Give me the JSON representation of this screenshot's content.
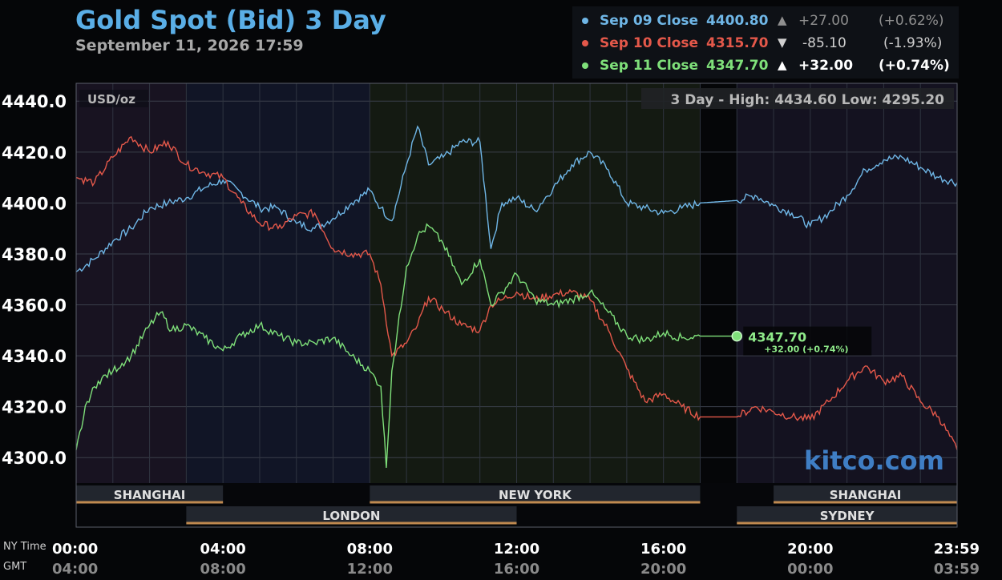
{
  "title": "Gold Spot (Bid) 3 Day",
  "subtitle": "September 11, 2026 17:59",
  "legend": [
    {
      "label": "Sep 09 Close",
      "value": "4400.80",
      "arrow": "▲",
      "change": "+27.00",
      "pct": "(+0.62%)",
      "color": "#6fb6e6",
      "dim": true
    },
    {
      "label": "Sep 10 Close",
      "value": "4315.70",
      "arrow": "▼",
      "change": "-85.10",
      "pct": "(-1.93%)",
      "color": "#e4584a",
      "dim": true
    },
    {
      "label": "Sep 11 Close",
      "value": "4347.70",
      "arrow": "▲",
      "change": "+32.00",
      "pct": "(+0.74%)",
      "color": "#7fe07a",
      "dim": false
    }
  ],
  "unit_label": "USD/oz",
  "range_label": "3 Day - High: 4434.60  Low: 4295.20",
  "watermark": "kitco.com",
  "current": {
    "value": "4347.70",
    "change": "+32.00 (+0.74%)"
  },
  "time_labels": {
    "ny": "NY Time",
    "gmt": "GMT"
  },
  "sessions": [
    {
      "name": "SHANGHAI",
      "start": 0,
      "end": 4,
      "row": 0
    },
    {
      "name": "NEW YORK",
      "start": 8,
      "end": 17,
      "row": 0
    },
    {
      "name": "SHANGHAI",
      "start": 19,
      "end": 24,
      "row": 0
    },
    {
      "name": "LONDON",
      "start": 3,
      "end": 12,
      "row": 1
    },
    {
      "name": "SYDNEY",
      "start": 18,
      "end": 24,
      "row": 1
    }
  ],
  "colors": {
    "sep09": "#6fb6e6",
    "sep10": "#e4584a",
    "sep11": "#7fe07a",
    "session_bar": "#c08a50"
  },
  "chart_data": {
    "type": "line",
    "ylabel": "USD/oz",
    "ylim": [
      4290,
      4447
    ],
    "xlim": [
      0,
      24
    ],
    "yticks": [
      4300.0,
      4320.0,
      4340.0,
      4360.0,
      4380.0,
      4400.0,
      4420.0,
      4440.0
    ],
    "ytick_labels": [
      "4300.0",
      "4320.0",
      "4340.0",
      "4360.0",
      "4380.0",
      "4400.0",
      "4420.0",
      "4440.0"
    ],
    "xticks": [
      0,
      4,
      8,
      12,
      16,
      20,
      24
    ],
    "xtick_labels_ny": [
      "00:00",
      "04:00",
      "08:00",
      "12:00",
      "16:00",
      "20:00",
      "23:59"
    ],
    "xtick_labels_gmt": [
      "04:00",
      "08:00",
      "12:00",
      "16:00",
      "20:00",
      "00:00",
      "03:59"
    ],
    "grid": true,
    "series": [
      {
        "name": "Sep 09 Close",
        "x": [
          0,
          0.5,
          1,
          1.5,
          2,
          2.5,
          3,
          3.5,
          4,
          4.5,
          5,
          5.5,
          6,
          6.5,
          7,
          7.5,
          8,
          8.3,
          8.6,
          9,
          9.3,
          9.6,
          10,
          10.5,
          11,
          11.3,
          11.6,
          12,
          12.5,
          13,
          13.5,
          14,
          14.5,
          15,
          15.5,
          16,
          16.5,
          17,
          18,
          18.5,
          19,
          19.5,
          20,
          20.5,
          21,
          21.5,
          22,
          22.5,
          23,
          23.5,
          24
        ],
        "y": [
          4373,
          4378,
          4385,
          4390,
          4398,
          4400,
          4402,
          4406,
          4409,
          4404,
          4398,
          4398,
          4392,
          4390,
          4394,
          4400,
          4405,
          4398,
          4393,
          4415,
          4430,
          4415,
          4418,
          4424,
          4424,
          4382,
          4400,
          4402,
          4397,
          4406,
          4415,
          4420,
          4413,
          4400,
          4398,
          4396,
          4398,
          4400,
          4401,
          4403,
          4399,
          4396,
          4391,
          4396,
          4403,
          4413,
          4417,
          4418,
          4414,
          4410,
          4408
        ]
      },
      {
        "name": "Sep 10 Close",
        "x": [
          0,
          0.5,
          1,
          1.5,
          2,
          2.5,
          3,
          3.5,
          4,
          4.5,
          5,
          5.5,
          6,
          6.5,
          7,
          7.5,
          8,
          8.3,
          8.6,
          9,
          9.3,
          9.6,
          10,
          10.5,
          11,
          11.3,
          11.6,
          12,
          12.5,
          13,
          13.5,
          14,
          14.5,
          15,
          15.5,
          16,
          16.5,
          17,
          18,
          18.5,
          19,
          19.5,
          20,
          20.5,
          21,
          21.5,
          22,
          22.5,
          23,
          23.5,
          24
        ],
        "y": [
          4410,
          4408,
          4418,
          4426,
          4420,
          4424,
          4415,
          4412,
          4410,
          4400,
          4392,
          4390,
          4395,
          4396,
          4382,
          4380,
          4380,
          4368,
          4340,
          4345,
          4352,
          4363,
          4358,
          4352,
          4350,
          4360,
          4362,
          4365,
          4362,
          4364,
          4365,
          4362,
          4350,
          4335,
          4322,
          4325,
          4320,
          4316,
          4316,
          4320,
          4318,
          4316,
          4315,
          4322,
          4330,
          4336,
          4330,
          4332,
          4322,
          4316,
          4303
        ]
      },
      {
        "name": "Sep 11 Close",
        "x": [
          0,
          0.3,
          0.6,
          1,
          1.5,
          2,
          2.3,
          2.6,
          3,
          3.5,
          4,
          4.5,
          5,
          5.5,
          6,
          6.5,
          7,
          7.5,
          8,
          8.3,
          8.45,
          8.6,
          9,
          9.3,
          9.6,
          10,
          10.5,
          11,
          11.3,
          11.6,
          12,
          12.5,
          13,
          13.5,
          14,
          14.5,
          15,
          15.5,
          16,
          16.5,
          17
        ],
        "y": [
          4303,
          4322,
          4330,
          4334,
          4340,
          4352,
          4357,
          4350,
          4352,
          4347,
          4342,
          4348,
          4352,
          4348,
          4345,
          4345,
          4347,
          4340,
          4334,
          4328,
          4296,
          4334,
          4375,
          4387,
          4391,
          4384,
          4368,
          4378,
          4360,
          4365,
          4372,
          4362,
          4360,
          4362,
          4365,
          4357,
          4348,
          4346,
          4349,
          4347,
          4347.7
        ]
      }
    ]
  }
}
